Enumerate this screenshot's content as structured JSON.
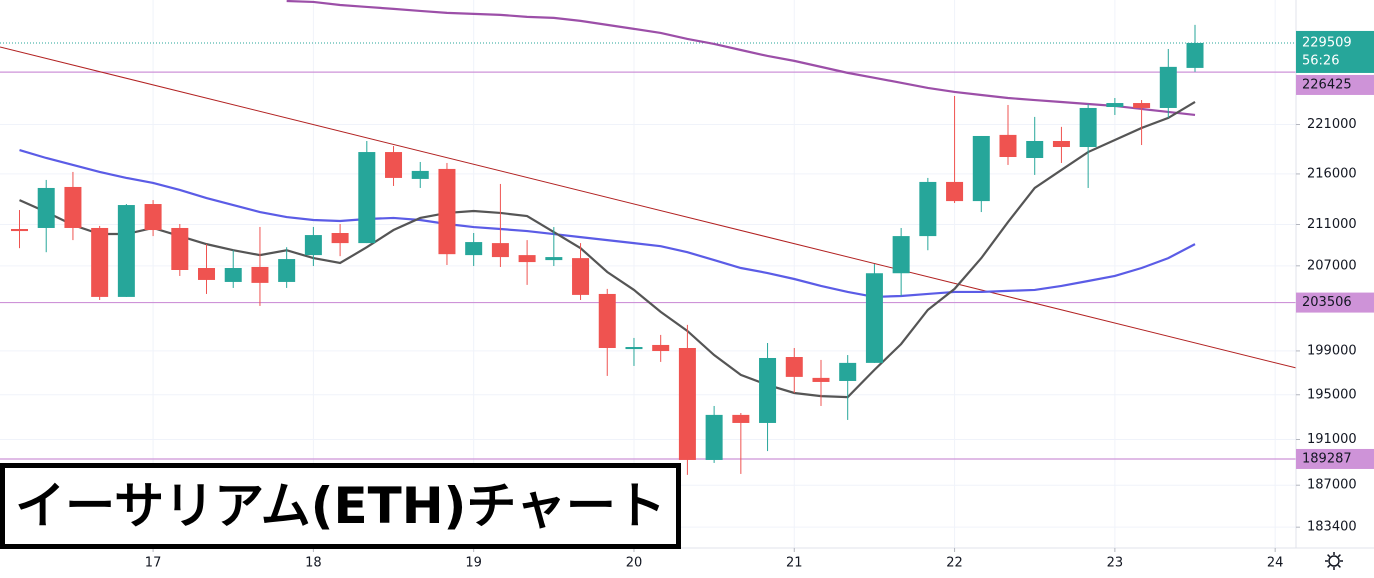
{
  "chart_data": {
    "type": "candlestick",
    "title": "イーサリアム(ETH)チャート",
    "log": true,
    "grid": true,
    "xlim": [
      16.045,
      24.13
    ],
    "xticks": [
      17,
      18,
      19,
      20,
      21,
      22,
      23,
      24
    ],
    "ylim": [
      181640,
      234120
    ],
    "yticks": [
      221000,
      216000,
      211000,
      207000,
      199000,
      195000,
      191000,
      187000,
      183400
    ],
    "up_color": "#26a69a",
    "down_color": "#ef5350",
    "x": [
      16.1667,
      16.3333,
      16.5,
      16.6667,
      16.8333,
      17,
      17.1667,
      17.3333,
      17.5,
      17.6667,
      17.8333,
      18,
      18.1667,
      18.3333,
      18.5,
      18.6667,
      18.8333,
      19,
      19.1667,
      19.3333,
      19.5,
      19.6667,
      19.8333,
      20,
      20.1667,
      20.3333,
      20.5,
      20.6667,
      20.8333,
      21,
      21.1667,
      21.3333,
      21.5,
      21.6667,
      21.8333,
      22,
      22.1667,
      22.3333,
      22.5,
      22.6667,
      22.8333,
      23,
      23.1667,
      23.3333,
      23.5
    ],
    "open": [
      210560,
      210660,
      214700,
      210660,
      204040,
      213010,
      210660,
      206790,
      205460,
      206890,
      205460,
      208030,
      210170,
      209190,
      218200,
      215500,
      216500,
      208030,
      209190,
      208030,
      207550,
      207740,
      204320,
      199170,
      199550,
      199270,
      189200,
      193190,
      192470,
      198440,
      196530,
      196250,
      197900,
      206290,
      209870,
      215200,
      213300,
      219940,
      217600,
      219320,
      218710,
      222800,
      223210,
      222700,
      226870
    ],
    "high": [
      212420,
      215400,
      216200,
      210860,
      213010,
      213400,
      211050,
      209090,
      208500,
      210760,
      208790,
      210760,
      211050,
      219320,
      218810,
      217200,
      217100,
      210170,
      215000,
      209480,
      210750,
      209190,
      204800,
      200200,
      200480,
      201420,
      193990,
      193360,
      199730,
      199270,
      198170,
      198620,
      207170,
      210660,
      215600,
      223940,
      219830,
      223010,
      221780,
      220760,
      223110,
      223730,
      223520,
      228870,
      231440
    ],
    "low": [
      208700,
      208310,
      209480,
      203750,
      204040,
      209870,
      206030,
      204320,
      204890,
      203190,
      204890,
      206980,
      207930,
      209190,
      214800,
      214600,
      207080,
      206980,
      206890,
      205180,
      206980,
      203750,
      196710,
      197620,
      197990,
      187900,
      188940,
      187980,
      189980,
      195160,
      193990,
      192740,
      197900,
      204130,
      208500,
      213110,
      212220,
      216900,
      215900,
      217100,
      214600,
      221980,
      218910,
      221680,
      226460
    ],
    "close": [
      210360,
      214600,
      210660,
      204040,
      212910,
      210460,
      206600,
      205650,
      206790,
      205370,
      207650,
      209970,
      209190,
      218200,
      215600,
      216300,
      208120,
      209290,
      207840,
      207360,
      207840,
      204230,
      199270,
      199360,
      198990,
      189200,
      193190,
      192470,
      198350,
      196620,
      196160,
      197900,
      206290,
      209870,
      215200,
      213300,
      219830,
      217700,
      219320,
      218710,
      222700,
      223210,
      222700,
      226980,
      229509
    ],
    "lines": [
      {
        "color": "#9c4fa8",
        "values": [
          null,
          null,
          null,
          null,
          null,
          null,
          null,
          null,
          null,
          null,
          234010,
          233910,
          233580,
          233370,
          233160,
          232940,
          232730,
          232620,
          232510,
          232300,
          232190,
          231870,
          231440,
          231010,
          230580,
          229940,
          229400,
          228760,
          228130,
          227610,
          226980,
          226350,
          225830,
          225310,
          224780,
          224360,
          224040,
          223730,
          223520,
          223320,
          223110,
          222910,
          222600,
          222290,
          221980
        ]
      },
      {
        "color": "#5b5ce6",
        "values": [
          218400,
          217600,
          216900,
          216200,
          215600,
          215100,
          214400,
          213600,
          212910,
          212220,
          211730,
          211440,
          211340,
          211540,
          211640,
          211440,
          211050,
          210750,
          210560,
          210360,
          210070,
          209770,
          209480,
          209190,
          208890,
          208310,
          207550,
          206790,
          206310,
          205740,
          205080,
          204510,
          204040,
          204130,
          204320,
          204510,
          204510,
          204610,
          204700,
          205080,
          205550,
          206030,
          206790,
          207740,
          209090
        ]
      },
      {
        "color": "#555555",
        "values": [
          213400,
          212220,
          210950,
          210070,
          210070,
          210660,
          209870,
          209090,
          208500,
          208030,
          208500,
          207740,
          207270,
          208790,
          210460,
          211640,
          212130,
          212320,
          212130,
          211830,
          210260,
          208700,
          206410,
          204700,
          202630,
          200850,
          198620,
          196800,
          195890,
          195160,
          194880,
          194790,
          197260,
          199640,
          202820,
          204800,
          207740,
          211240,
          214600,
          216400,
          218200,
          219420,
          220650,
          221680,
          223320
        ]
      }
    ],
    "trendline": {
      "color": "#b22222",
      "x": [
        16.045,
        24.13
      ],
      "values": [
        229080,
        197440
      ]
    },
    "levels": [
      {
        "value": 226425,
        "color": "#ce93d8"
      },
      {
        "value": 203506,
        "color": "#ce93d8"
      },
      {
        "value": 189287,
        "color": "#ce93d8"
      }
    ],
    "last_price": 229509,
    "countdown": "56:26"
  }
}
